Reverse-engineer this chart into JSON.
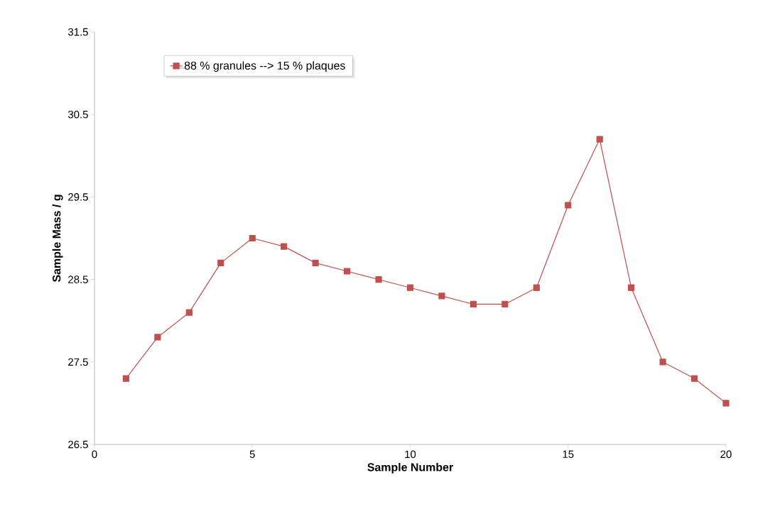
{
  "chart_data": {
    "type": "line",
    "xlabel": "Sample Number",
    "ylabel": "Sample Mass  / g",
    "x": [
      1,
      2,
      3,
      4,
      5,
      6,
      7,
      8,
      9,
      10,
      11,
      12,
      13,
      14,
      15,
      16,
      17,
      18,
      19,
      20
    ],
    "series": [
      {
        "name": "88 % granules --> 15 % plaques",
        "color": "#c0504d",
        "values": [
          27.3,
          27.8,
          28.1,
          28.7,
          29.0,
          28.9,
          28.7,
          28.6,
          28.5,
          28.4,
          28.3,
          28.2,
          28.2,
          28.4,
          29.4,
          30.2,
          28.4,
          27.5,
          27.3,
          27.0
        ]
      }
    ],
    "xlim": [
      0,
      20
    ],
    "ylim": [
      26.5,
      31.5
    ],
    "xticks": [
      0,
      5,
      10,
      15,
      20
    ],
    "yticks": [
      26.5,
      27.5,
      28.5,
      29.5,
      30.5,
      31.5
    ],
    "legend": "top left",
    "marker": "square",
    "line_style": "solid",
    "grid": false
  }
}
